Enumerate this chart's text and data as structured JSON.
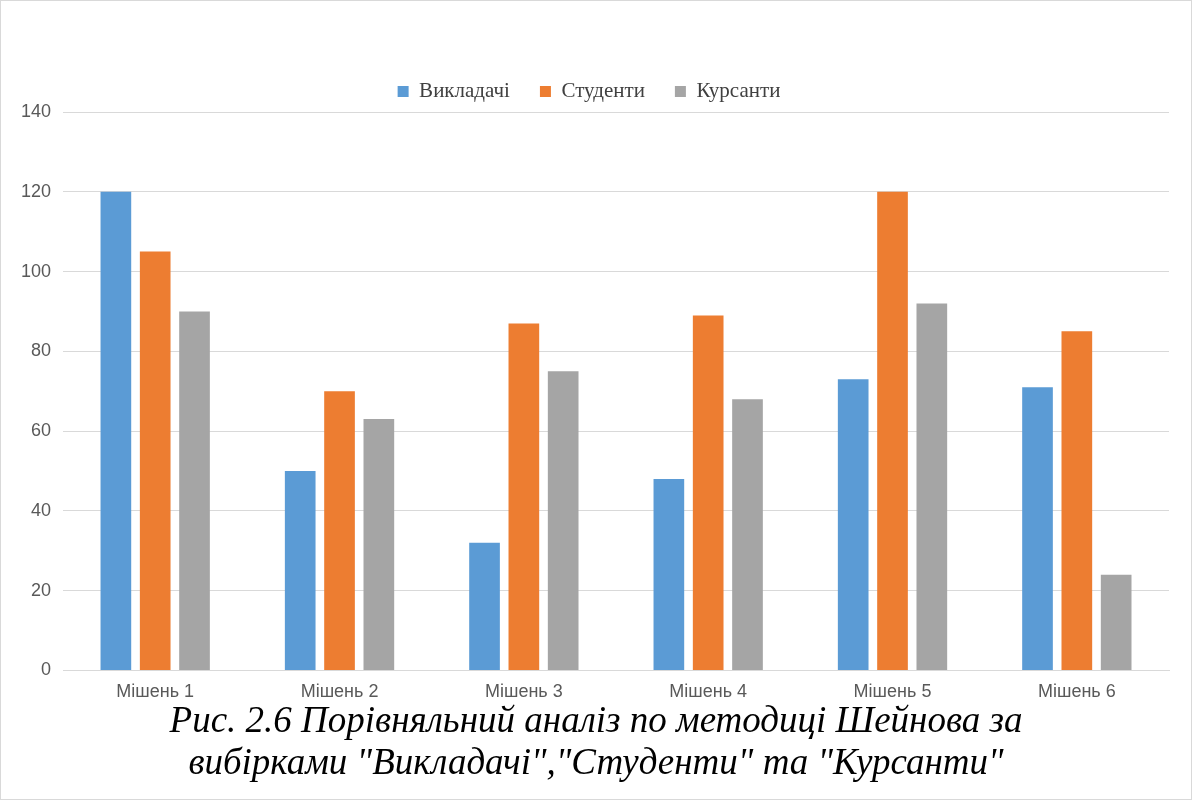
{
  "chart_data": {
    "type": "bar",
    "categories": [
      "Мішень 1",
      "Мішень 2",
      "Мішень 3",
      "Мішень 4",
      "Мішень 5",
      "Мішень 6"
    ],
    "series": [
      {
        "name": "Викладачі",
        "color": "#5b9bd5",
        "values": [
          120,
          50,
          32,
          48,
          73,
          71
        ]
      },
      {
        "name": "Студенти",
        "color": "#ed7d31",
        "values": [
          105,
          70,
          87,
          89,
          120,
          85
        ]
      },
      {
        "name": "Курсанти",
        "color": "#a5a5a5",
        "values": [
          90,
          63,
          75,
          68,
          92,
          24
        ]
      }
    ],
    "ylim": [
      0,
      140
    ],
    "yticks": [
      0,
      20,
      40,
      60,
      80,
      100,
      120,
      140
    ],
    "grid": "y",
    "legend": "top",
    "annotations": [
      "Рис. 2.6 Порівняльний аналіз по методиці Шейнова за вибірками \"Викладачі\",\"Студенти\" та \"Курсанти\""
    ]
  }
}
